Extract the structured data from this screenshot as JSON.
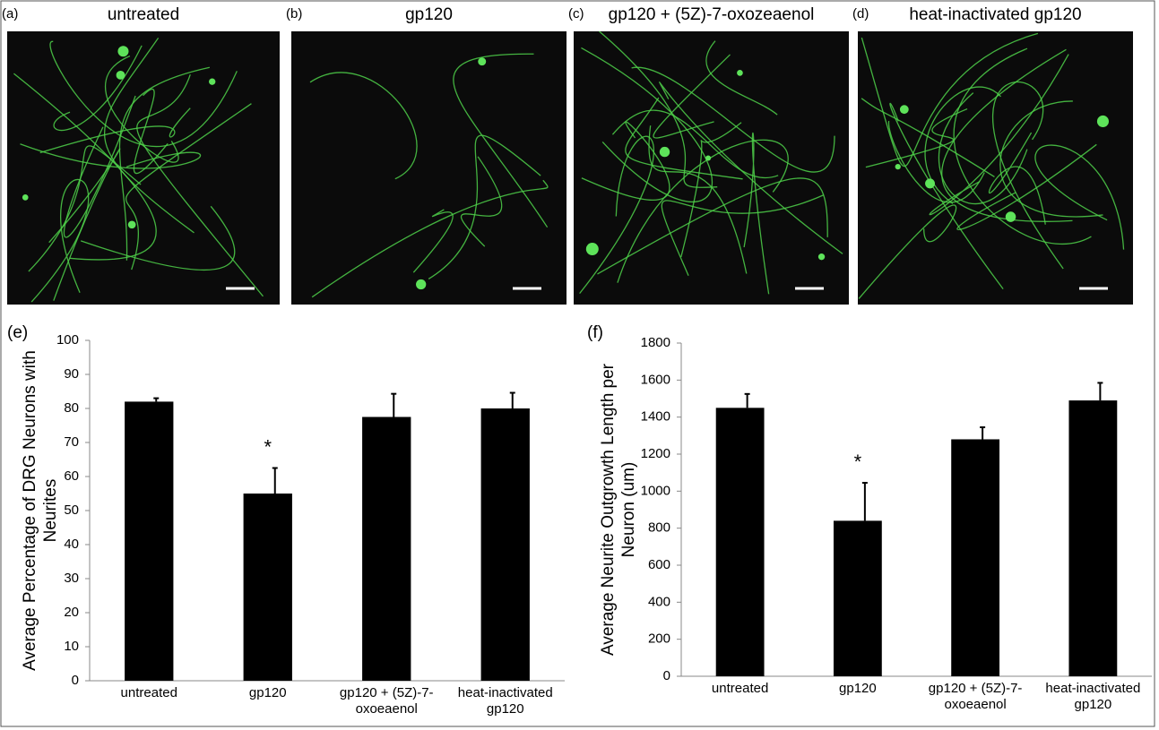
{
  "panels": [
    {
      "label": "(a)",
      "title": "untreated"
    },
    {
      "label": "(b)",
      "title": "gp120"
    },
    {
      "label": "(c)",
      "title": "gp120 + (5Z)-7-oxozeaenol"
    },
    {
      "label": "(d)",
      "title": "heat-inactivated gp120"
    }
  ],
  "chart_data": [
    {
      "type": "bar",
      "label": "(e)",
      "ylabel": "Average Percentage of DRG Neurons with Neurites",
      "categories": [
        "untreated",
        "gp120",
        "gp120 + (5Z)-7-oxoeaenol",
        "heat-inactivated gp120"
      ],
      "values": [
        82,
        55,
        77.5,
        80
      ],
      "errors": [
        1,
        7.5,
        6.8,
        4.6
      ],
      "color": "#000000",
      "annotations": [
        {
          "category": "gp120",
          "text": "*"
        }
      ],
      "ylim": [
        0,
        100
      ],
      "yticks": [
        0,
        10,
        20,
        30,
        40,
        50,
        60,
        70,
        80,
        90,
        100
      ]
    },
    {
      "type": "bar",
      "label": "(f)",
      "ylabel": "Average Neurite Outgrowth Length per Neuron (um)",
      "categories": [
        "untreated",
        "gp120",
        "gp120 + (5Z)-7-oxoeaenol",
        "heat-inactivated gp120"
      ],
      "values": [
        1450,
        840,
        1280,
        1490
      ],
      "errors": [
        75,
        205,
        65,
        95
      ],
      "color": "#000000",
      "annotations": [
        {
          "category": "gp120",
          "text": "*"
        }
      ],
      "ylim": [
        0,
        1800
      ],
      "yticks": [
        0,
        200,
        400,
        600,
        800,
        1000,
        1200,
        1400,
        1600,
        1800
      ]
    }
  ]
}
